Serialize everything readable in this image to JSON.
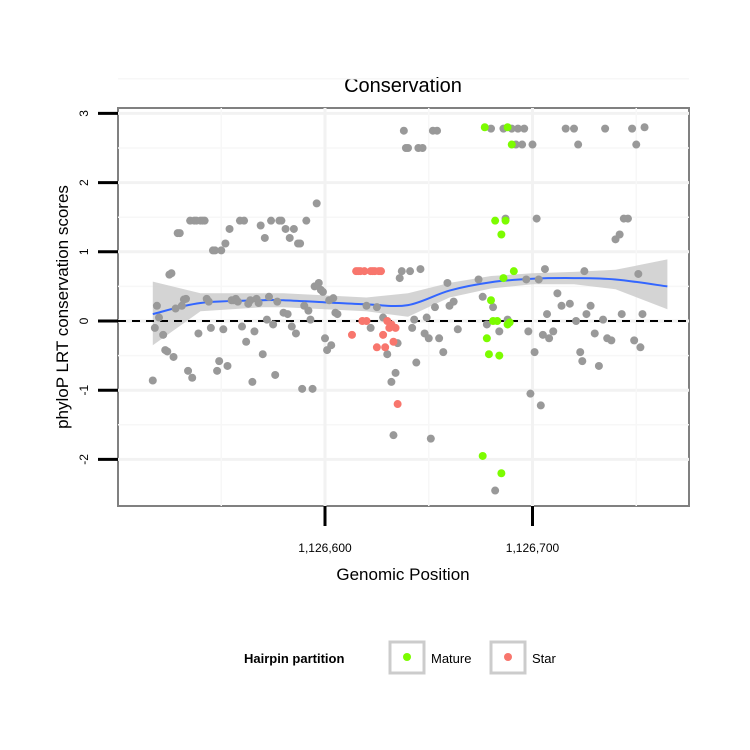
{
  "chart_data": {
    "type": "scatter",
    "title": "Conservation",
    "xlabel": "Genomic Position",
    "ylabel": "phyloP LRT conservation scores",
    "xlim": [
      1126505,
      1126780
    ],
    "ylim": [
      -2.7,
      3.05
    ],
    "x_ticks": [
      {
        "value": 1126600,
        "label": "1,126,600"
      },
      {
        "value": 1126700,
        "label": "1,126,700"
      }
    ],
    "y_ticks": [
      {
        "value": -2,
        "label": "-2"
      },
      {
        "value": -1,
        "label": "-1"
      },
      {
        "value": 0,
        "label": "0"
      },
      {
        "value": 1,
        "label": "1"
      },
      {
        "value": 2,
        "label": "2"
      },
      {
        "value": 3,
        "label": "3"
      }
    ],
    "reference_line": {
      "y": 0,
      "style": "dashed"
    },
    "legend": {
      "title": "Hairpin partition",
      "position": "bottom",
      "entries": [
        {
          "name": "Mature",
          "color": "#7cfc00"
        },
        {
          "name": "Star",
          "color": "#f8766d"
        }
      ]
    },
    "smooth": {
      "color": "#3366ff",
      "band_color": "#cccccc",
      "x": [
        1126517,
        1126540,
        1126570,
        1126580,
        1126600,
        1126620,
        1126640,
        1126660,
        1126680,
        1126700,
        1126720,
        1126740,
        1126765
      ],
      "y": [
        0.1,
        0.26,
        0.3,
        0.3,
        0.27,
        0.24,
        0.23,
        0.44,
        0.56,
        0.61,
        0.62,
        0.6,
        0.5
      ],
      "lower": [
        -0.35,
        0.14,
        0.2,
        0.2,
        0.17,
        0.14,
        0.06,
        0.34,
        0.47,
        0.53,
        0.53,
        0.46,
        0.17
      ],
      "upper": [
        0.57,
        0.4,
        0.4,
        0.4,
        0.37,
        0.34,
        0.4,
        0.55,
        0.65,
        0.69,
        0.71,
        0.74,
        0.89
      ]
    },
    "series": [
      {
        "name": "Other",
        "color": "#999999",
        "points": [
          [
            1126517,
            -0.86
          ],
          [
            1126518,
            -0.1
          ],
          [
            1126519,
            0.22
          ],
          [
            1126520,
            0.05
          ],
          [
            1126522,
            -0.2
          ],
          [
            1126523,
            -0.42
          ],
          [
            1126524,
            -0.44
          ],
          [
            1126525,
            0.67
          ],
          [
            1126526,
            0.69
          ],
          [
            1126527,
            -0.52
          ],
          [
            1126528,
            0.18
          ],
          [
            1126529,
            1.27
          ],
          [
            1126530,
            1.27
          ],
          [
            1126531,
            0.22
          ],
          [
            1126532,
            0.31
          ],
          [
            1126533,
            0.32
          ],
          [
            1126534,
            -0.72
          ],
          [
            1126535,
            1.45
          ],
          [
            1126536,
            -0.82
          ],
          [
            1126537,
            1.45
          ],
          [
            1126538,
            1.45
          ],
          [
            1126539,
            -0.18
          ],
          [
            1126540,
            1.45
          ],
          [
            1126541,
            1.45
          ],
          [
            1126542,
            1.45
          ],
          [
            1126543,
            0.32
          ],
          [
            1126544,
            0.28
          ],
          [
            1126545,
            -0.1
          ],
          [
            1126546,
            1.02
          ],
          [
            1126547,
            1.02
          ],
          [
            1126548,
            -0.72
          ],
          [
            1126549,
            -0.58
          ],
          [
            1126550,
            1.02
          ],
          [
            1126551,
            -0.12
          ],
          [
            1126552,
            1.12
          ],
          [
            1126553,
            -0.65
          ],
          [
            1126554,
            1.33
          ],
          [
            1126555,
            0.3
          ],
          [
            1126556,
            0.3
          ],
          [
            1126557,
            0.32
          ],
          [
            1126558,
            0.28
          ],
          [
            1126559,
            1.45
          ],
          [
            1126560,
            -0.08
          ],
          [
            1126561,
            1.45
          ],
          [
            1126562,
            -0.3
          ],
          [
            1126563,
            0.25
          ],
          [
            1126564,
            0.3
          ],
          [
            1126565,
            -0.88
          ],
          [
            1126566,
            -0.15
          ],
          [
            1126567,
            0.32
          ],
          [
            1126568,
            0.26
          ],
          [
            1126569,
            1.38
          ],
          [
            1126570,
            -0.48
          ],
          [
            1126571,
            1.2
          ],
          [
            1126572,
            0.02
          ],
          [
            1126573,
            0.35
          ],
          [
            1126574,
            1.45
          ],
          [
            1126575,
            -0.05
          ],
          [
            1126576,
            -0.78
          ],
          [
            1126577,
            0.28
          ],
          [
            1126578,
            1.45
          ],
          [
            1126579,
            1.45
          ],
          [
            1126580,
            0.12
          ],
          [
            1126581,
            1.33
          ],
          [
            1126582,
            0.1
          ],
          [
            1126583,
            1.2
          ],
          [
            1126584,
            -0.08
          ],
          [
            1126585,
            1.33
          ],
          [
            1126586,
            -0.18
          ],
          [
            1126587,
            1.12
          ],
          [
            1126588,
            1.12
          ],
          [
            1126589,
            -0.98
          ],
          [
            1126590,
            0.22
          ],
          [
            1126591,
            1.45
          ],
          [
            1126592,
            0.15
          ],
          [
            1126593,
            0.02
          ],
          [
            1126594,
            -0.98
          ],
          [
            1126595,
            0.5
          ],
          [
            1126596,
            1.7
          ],
          [
            1126597,
            0.55
          ],
          [
            1126598,
            0.45
          ],
          [
            1126599,
            0.42
          ],
          [
            1126600,
            -0.25
          ],
          [
            1126601,
            -0.42
          ],
          [
            1126602,
            0.3
          ],
          [
            1126603,
            -0.35
          ],
          [
            1126604,
            0.33
          ],
          [
            1126605,
            0.12
          ],
          [
            1126606,
            0.1
          ],
          [
            1126620,
            0.22
          ],
          [
            1126622,
            -0.1
          ],
          [
            1126625,
            0.2
          ],
          [
            1126628,
            0.05
          ],
          [
            1126630,
            -0.48
          ],
          [
            1126632,
            -0.88
          ],
          [
            1126633,
            -1.65
          ],
          [
            1126634,
            -0.75
          ],
          [
            1126635,
            -0.32
          ],
          [
            1126636,
            0.62
          ],
          [
            1126637,
            0.72
          ],
          [
            1126638,
            2.75
          ],
          [
            1126639,
            2.5
          ],
          [
            1126640,
            2.5
          ],
          [
            1126641,
            0.72
          ],
          [
            1126642,
            -0.1
          ],
          [
            1126643,
            0.02
          ],
          [
            1126644,
            -0.6
          ],
          [
            1126645,
            2.5
          ],
          [
            1126646,
            0.75
          ],
          [
            1126647,
            2.5
          ],
          [
            1126648,
            -0.18
          ],
          [
            1126649,
            0.05
          ],
          [
            1126650,
            -0.25
          ],
          [
            1126651,
            -1.7
          ],
          [
            1126652,
            2.75
          ],
          [
            1126653,
            0.2
          ],
          [
            1126654,
            2.75
          ],
          [
            1126655,
            -0.25
          ],
          [
            1126657,
            -0.45
          ],
          [
            1126659,
            0.55
          ],
          [
            1126660,
            0.22
          ],
          [
            1126662,
            0.28
          ],
          [
            1126664,
            -0.12
          ],
          [
            1126674,
            0.6
          ],
          [
            1126676,
            0.35
          ],
          [
            1126678,
            -0.05
          ],
          [
            1126680,
            2.78
          ],
          [
            1126681,
            0.2
          ],
          [
            1126682,
            -2.45
          ],
          [
            1126684,
            -0.15
          ],
          [
            1126686,
            2.78
          ],
          [
            1126687,
            1.48
          ],
          [
            1126688,
            0.02
          ],
          [
            1126690,
            2.78
          ],
          [
            1126692,
            2.55
          ],
          [
            1126693,
            2.78
          ],
          [
            1126695,
            2.55
          ],
          [
            1126696,
            2.78
          ],
          [
            1126697,
            0.6
          ],
          [
            1126698,
            -0.15
          ],
          [
            1126699,
            -1.05
          ],
          [
            1126700,
            2.55
          ],
          [
            1126701,
            -0.45
          ],
          [
            1126702,
            1.48
          ],
          [
            1126703,
            0.6
          ],
          [
            1126704,
            -1.22
          ],
          [
            1126705,
            -0.2
          ],
          [
            1126706,
            0.75
          ],
          [
            1126707,
            0.1
          ],
          [
            1126708,
            -0.25
          ],
          [
            1126710,
            -0.15
          ],
          [
            1126712,
            0.4
          ],
          [
            1126714,
            0.22
          ],
          [
            1126716,
            2.78
          ],
          [
            1126718,
            0.25
          ],
          [
            1126720,
            2.78
          ],
          [
            1126721,
            0.0
          ],
          [
            1126722,
            2.55
          ],
          [
            1126723,
            -0.45
          ],
          [
            1126724,
            -0.58
          ],
          [
            1126725,
            0.72
          ],
          [
            1126726,
            0.1
          ],
          [
            1126728,
            0.22
          ],
          [
            1126730,
            -0.18
          ],
          [
            1126732,
            -0.65
          ],
          [
            1126734,
            0.02
          ],
          [
            1126735,
            2.78
          ],
          [
            1126736,
            -0.25
          ],
          [
            1126738,
            -0.28
          ],
          [
            1126740,
            1.18
          ],
          [
            1126742,
            1.25
          ],
          [
            1126743,
            0.1
          ],
          [
            1126744,
            1.48
          ],
          [
            1126746,
            1.48
          ],
          [
            1126748,
            2.78
          ],
          [
            1126749,
            -0.28
          ],
          [
            1126750,
            2.55
          ],
          [
            1126751,
            0.68
          ],
          [
            1126752,
            -0.38
          ],
          [
            1126753,
            0.1
          ],
          [
            1126754,
            2.8
          ]
        ]
      },
      {
        "name": "Mature",
        "color": "#7cfc00",
        "points": [
          [
            1126677,
            2.8
          ],
          [
            1126678,
            -0.25
          ],
          [
            1126679,
            -0.48
          ],
          [
            1126680,
            0.3
          ],
          [
            1126681,
            0.0
          ],
          [
            1126682,
            1.45
          ],
          [
            1126683,
            0.0
          ],
          [
            1126684,
            -0.5
          ],
          [
            1126685,
            1.25
          ],
          [
            1126686,
            0.62
          ],
          [
            1126687,
            1.45
          ],
          [
            1126688,
            -0.05
          ],
          [
            1126689,
            -0.02
          ],
          [
            1126690,
            2.55
          ],
          [
            1126691,
            0.72
          ],
          [
            1126688,
            2.8
          ],
          [
            1126676,
            -1.95
          ],
          [
            1126685,
            -2.2
          ]
        ]
      },
      {
        "name": "Star",
        "color": "#f8766d",
        "points": [
          [
            1126613,
            -0.2
          ],
          [
            1126615,
            0.72
          ],
          [
            1126616,
            0.72
          ],
          [
            1126617,
            0.72
          ],
          [
            1126618,
            0.0
          ],
          [
            1126619,
            0.72
          ],
          [
            1126620,
            0.0
          ],
          [
            1126622,
            0.72
          ],
          [
            1126623,
            0.72
          ],
          [
            1126624,
            0.72
          ],
          [
            1126625,
            -0.38
          ],
          [
            1126626,
            0.72
          ],
          [
            1126627,
            0.72
          ],
          [
            1126628,
            -0.2
          ],
          [
            1126629,
            -0.38
          ],
          [
            1126630,
            0.0
          ],
          [
            1126631,
            -0.1
          ],
          [
            1126632,
            -0.05
          ],
          [
            1126633,
            -0.3
          ],
          [
            1126634,
            -0.1
          ],
          [
            1126635,
            -1.2
          ]
        ]
      }
    ]
  }
}
